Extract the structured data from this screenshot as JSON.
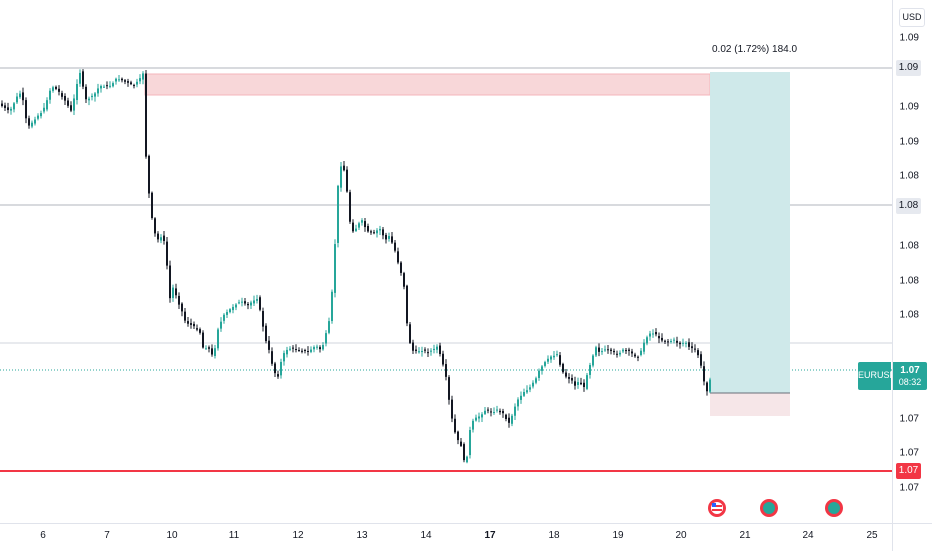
{
  "instrument": {
    "symbol": "EURUSD",
    "last_price": "1.07",
    "countdown": "08:32"
  },
  "currency_button": "USD",
  "price_axis": {
    "ticks": [
      "1.09",
      "1.09",
      "1.09",
      "1.08",
      "1.08",
      "1.08",
      "1.08",
      "1.07",
      "1.07",
      "1.07",
      "1.07"
    ],
    "labels": {
      "upper_zone": "1.09",
      "mid_line": "1.08",
      "support_line": "1.07"
    }
  },
  "time_axis": {
    "ticks": [
      {
        "label": "6",
        "bold": false
      },
      {
        "label": "7",
        "bold": false
      },
      {
        "label": "10",
        "bold": false
      },
      {
        "label": "11",
        "bold": false
      },
      {
        "label": "12",
        "bold": false
      },
      {
        "label": "13",
        "bold": false
      },
      {
        "label": "14",
        "bold": false
      },
      {
        "label": "17",
        "bold": true
      },
      {
        "label": "18",
        "bold": false
      },
      {
        "label": "19",
        "bold": false
      },
      {
        "label": "20",
        "bold": false
      },
      {
        "label": "21",
        "bold": false
      },
      {
        "label": "24",
        "bold": false
      },
      {
        "label": "25",
        "bold": false
      }
    ]
  },
  "measure_label": "0.02 (1.72%) 184.0",
  "events": [
    {
      "icon": "us-flag-icon"
    },
    {
      "icon": "economic-event-icon"
    },
    {
      "icon": "economic-event-icon"
    }
  ],
  "colors": {
    "bull": "#26a69a",
    "bear": "#131722",
    "support": "#f23645",
    "resistance_zone": "#f8d7d9",
    "target_zone": "#cfe9ea",
    "stop_zone": "#f6e6e8"
  }
}
